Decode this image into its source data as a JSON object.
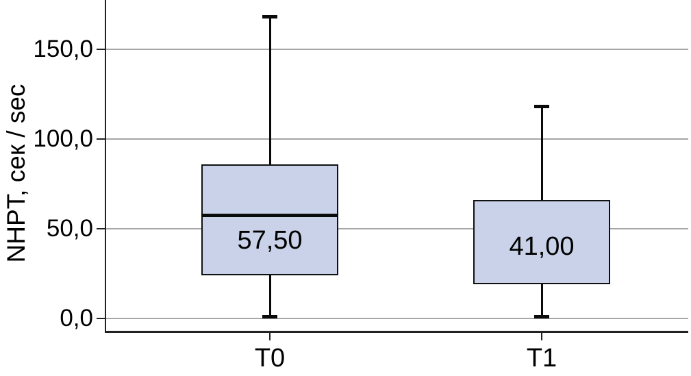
{
  "chart_data": {
    "type": "boxplot",
    "title": "",
    "xlabel": "",
    "ylabel": "NHPT, сек / sec",
    "categories": [
      "T0",
      "T1"
    ],
    "y_ticks": [
      {
        "value": 0,
        "label": "0,0"
      },
      {
        "value": 50,
        "label": "50,0"
      },
      {
        "value": 100,
        "label": "100,0"
      },
      {
        "value": 150,
        "label": "150,0"
      }
    ],
    "ylim_plot_area": [
      -7.6,
      177.5
    ],
    "grid": true,
    "legend": "none",
    "series": [
      {
        "category": "T0",
        "median": 57.5,
        "median_label": "57,50",
        "q1": 24,
        "q3": 86,
        "whisker_low": 1,
        "whisker_high": 168,
        "show_median_line": true
      },
      {
        "category": "T1",
        "median": 41.0,
        "median_label": "41,00",
        "q1": 19,
        "q3": 66,
        "whisker_low": 1,
        "whisker_high": 118,
        "show_median_line": false
      }
    ],
    "colors": {
      "box_fill": "#c9d2e9",
      "box_border": "#111111",
      "median_line": "#0a0a0a",
      "whisker": "#0a0a0a",
      "gridline": "#a6a6a6",
      "axis": "#222222",
      "text": "#000000",
      "background": "#ffffff"
    }
  }
}
